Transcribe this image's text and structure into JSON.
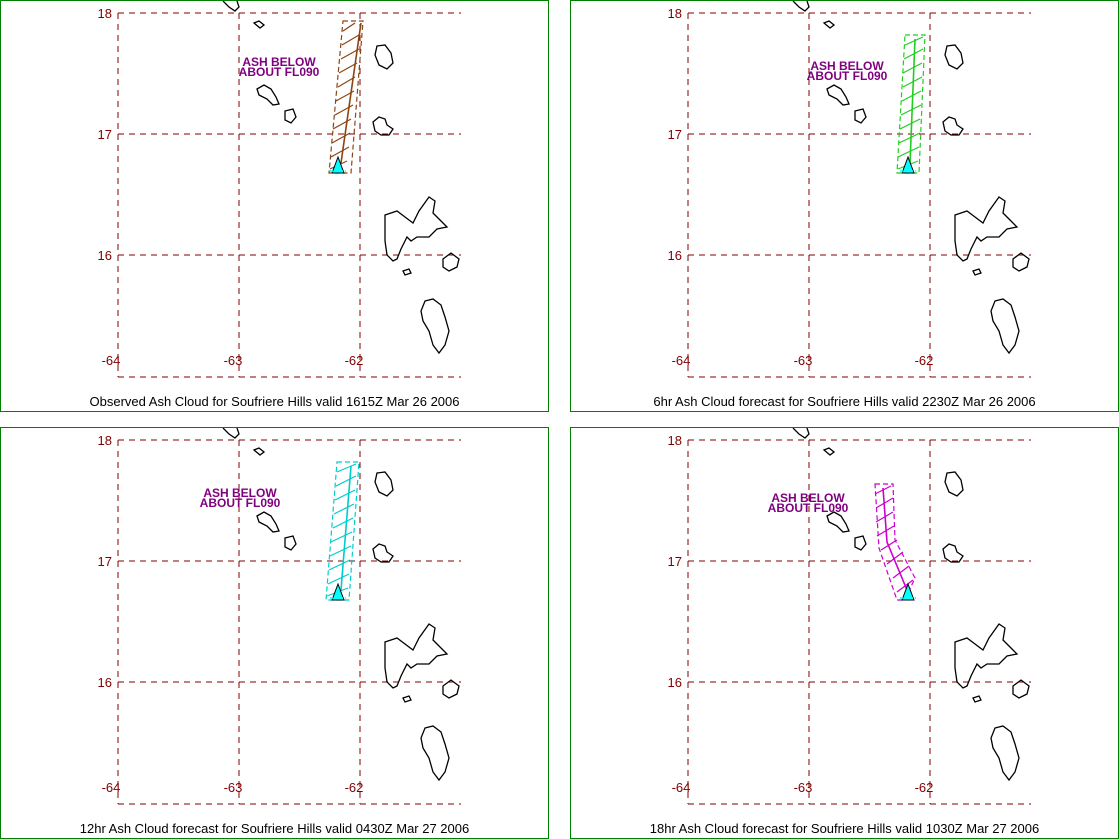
{
  "grid": {
    "lat_labels": [
      "18",
      "17",
      "16"
    ],
    "lon_labels": [
      "-64",
      "-63",
      "-62"
    ],
    "grid_color": "#800000",
    "coast_color": "#000000",
    "volcano_color": "#00ffff"
  },
  "panels": [
    {
      "id": "observed",
      "caption": "Observed Ash Cloud for Soufriere  Hills valid 1615Z Mar 26 2006",
      "ash_label_line1": "ASH BELOW",
      "ash_label_line2": "ABOUT FL090",
      "ash_color": "#8b4513",
      "has_ash_label": true
    },
    {
      "id": "forecast-6hr",
      "caption": "6hr Ash Cloud forecast for Soufriere  Hills valid 2230Z Mar 26 2006",
      "ash_label_line1": "ASH BELOW",
      "ash_label_line2": "ABOUT FL090",
      "ash_color": "#22cc22",
      "has_ash_label": true
    },
    {
      "id": "forecast-12hr",
      "caption": "12hr Ash Cloud forecast for Soufriere  Hills valid 0430Z Mar 27 2006",
      "ash_label_line1": "ASH BELOW",
      "ash_label_line2": "ABOUT FL090",
      "ash_color": "#00cccc",
      "has_ash_label": true
    },
    {
      "id": "forecast-18hr",
      "caption": "18hr Ash Cloud forecast for Soufriere  Hills valid 1030Z Mar 27 2006",
      "ash_label_line1": "ASH BELOW",
      "ash_label_line2": "ABOUT FL090",
      "ash_color": "#cc00cc",
      "has_ash_label": true
    }
  ]
}
